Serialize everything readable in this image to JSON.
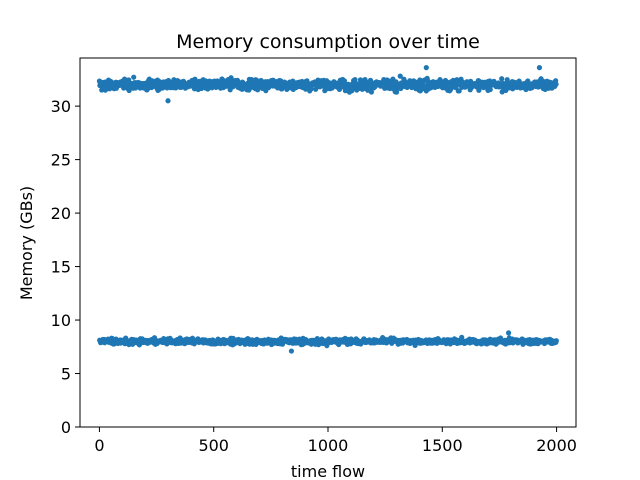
{
  "chart_data": {
    "type": "scatter",
    "title": "Memory consumption over time",
    "xlabel": "time flow",
    "ylabel": "Memory (GBs)",
    "xlim": [
      -85,
      2085
    ],
    "ylim": [
      0,
      34.5
    ],
    "xticks": [
      0,
      500,
      1000,
      1500,
      2000
    ],
    "yticks": [
      0,
      5,
      10,
      15,
      20,
      25,
      30
    ],
    "grid": false,
    "legend": "none",
    "marker_color": "#1f77b4",
    "series": [
      {
        "x_range": [
          0,
          1999
        ],
        "count": 2000,
        "distribution": "two alternating memory levels",
        "bands": [
          {
            "level": 32.0,
            "min": 30.4,
            "max": 33.7
          },
          {
            "level": 8.0,
            "min": 7.1,
            "max": 8.8
          }
        ],
        "notable_points": [
          {
            "x": 300,
            "y": 30.5
          },
          {
            "x": 1430,
            "y": 33.6
          },
          {
            "x": 1925,
            "y": 33.6
          },
          {
            "x": 840,
            "y": 7.1
          },
          {
            "x": 1790,
            "y": 8.8
          }
        ]
      }
    ]
  }
}
